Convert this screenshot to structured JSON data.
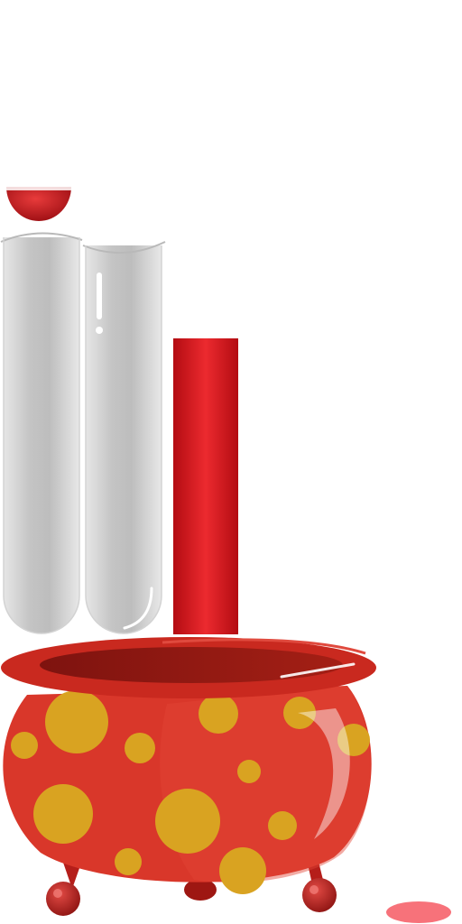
{
  "game": {
    "type": "sort-puzzle",
    "tubes": [
      {
        "id": 1,
        "fill_fraction": 0,
        "content_color": "#c8c8c8",
        "selected": false,
        "has_lifted_ball": true
      },
      {
        "id": 2,
        "fill_fraction": 0,
        "content_color": "#c8c8c8",
        "selected": false,
        "has_lifted_ball": false
      },
      {
        "id": 3,
        "fill_fraction": 1,
        "content_color": "#d4121c",
        "selected": false,
        "has_lifted_ball": false
      }
    ],
    "lifted_ball": {
      "color": "#c8141c"
    },
    "cauldron": {
      "body_color": "#d9372a",
      "rim_color": "#c9291f",
      "spot_color": "#d9a321",
      "leg_color": "#c0201c"
    },
    "indicator": {
      "color": "#f7727a"
    }
  }
}
